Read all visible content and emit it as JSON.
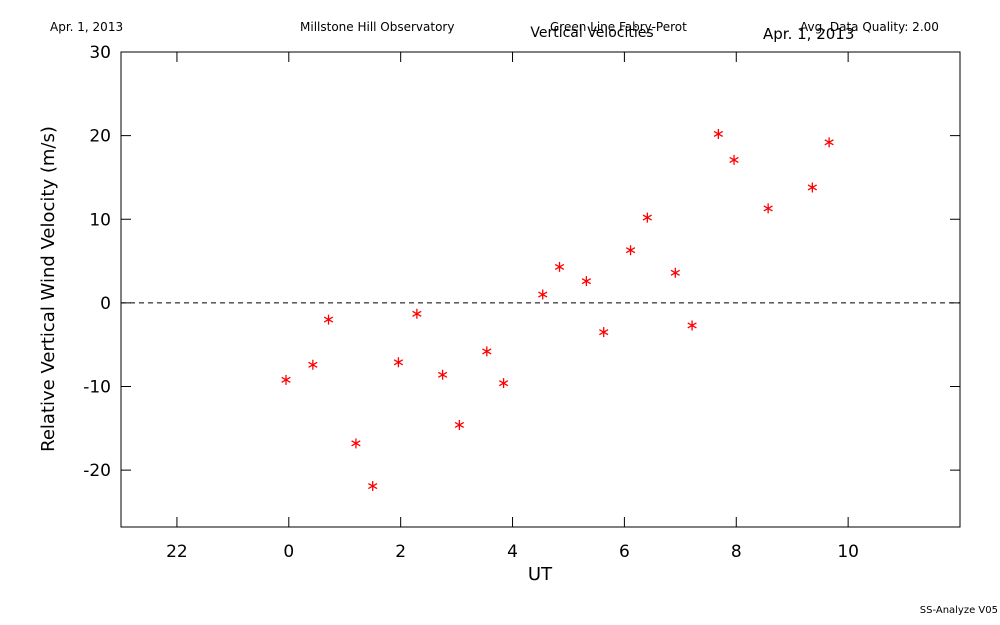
{
  "chart_data": {
    "type": "scatter",
    "title": "Vertical Velocities",
    "annotations": [
      "Apr. 1, 2013",
      "Millstone Hill Observatory",
      "Green Line Fabry-Perot",
      "Avg. Data Quality: 2.00",
      "Apr. 1, 2013",
      "SS-Analyze V05"
    ],
    "xlabel": "UT",
    "ylabel": "Relative Vertical Wind Velocity (m/s)",
    "xlim": [
      -3,
      12
    ],
    "ylim": [
      -26.8,
      30
    ],
    "xticks": [
      {
        "value": -2,
        "label": "22"
      },
      0,
      2,
      4,
      6,
      8,
      10
    ],
    "yticks": [
      -20,
      -10,
      0,
      10,
      20,
      30
    ],
    "zero_line": true,
    "series": [
      {
        "name": "Vertical Velocities",
        "color": "#ff0000",
        "x": [
          -0.05,
          0.43,
          0.71,
          1.2,
          1.5,
          1.96,
          2.29,
          2.75,
          3.05,
          3.54,
          3.84,
          4.54,
          4.84,
          5.32,
          5.63,
          6.11,
          6.41,
          6.91,
          7.21,
          7.68,
          7.96,
          8.57,
          9.36,
          9.66
        ],
        "values": [
          -9.2,
          -7.4,
          -2.0,
          -16.8,
          -21.9,
          -7.1,
          -1.3,
          -8.6,
          -14.6,
          -5.8,
          -9.6,
          1.0,
          4.3,
          2.6,
          -3.5,
          6.3,
          10.2,
          3.6,
          -2.7,
          20.2,
          17.1,
          11.3,
          13.8,
          19.2
        ]
      }
    ]
  }
}
